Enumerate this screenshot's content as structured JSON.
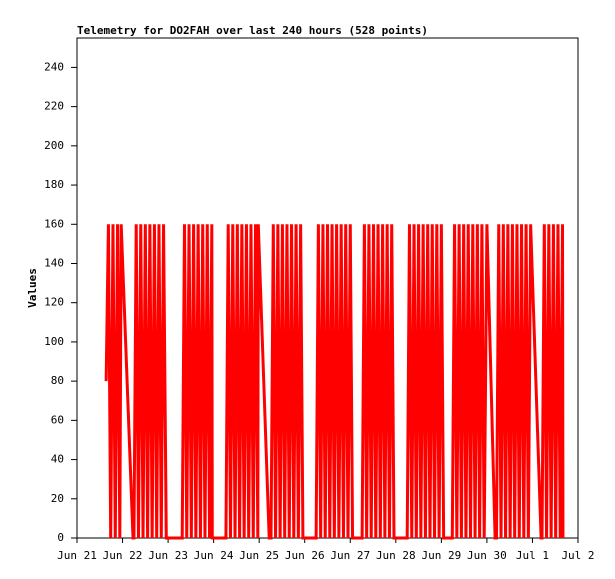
{
  "chart_data": {
    "type": "line",
    "title": "Telemetry for DO2FAH over last 240 hours (528 points)",
    "y_label": "Values",
    "color": "#ff0000",
    "xlim": [
      0,
      11
    ],
    "xticks": [
      {
        "value": 0,
        "label": "Jun 21"
      },
      {
        "value": 1,
        "label": "Jun 22"
      },
      {
        "value": 2,
        "label": "Jun 23"
      },
      {
        "value": 3,
        "label": "Jun 24"
      },
      {
        "value": 4,
        "label": "Jun 25"
      },
      {
        "value": 5,
        "label": "Jun 26"
      },
      {
        "value": 6,
        "label": "Jun 27"
      },
      {
        "value": 7,
        "label": "Jun 28"
      },
      {
        "value": 8,
        "label": "Jun 29"
      },
      {
        "value": 9,
        "label": "Jun 30"
      },
      {
        "value": 10,
        "label": "Jul 1"
      },
      {
        "value": 11,
        "label": "Jul 2"
      }
    ],
    "ylim": [
      0,
      255
    ],
    "yticks": [
      0,
      20,
      40,
      60,
      80,
      100,
      120,
      140,
      160,
      180,
      200,
      220,
      240
    ],
    "x": [
      0.64,
      0.69,
      0.74,
      0.79,
      0.84,
      0.89,
      0.94,
      0.97,
      1.23,
      1.25,
      1.3,
      1.35,
      1.4,
      1.45,
      1.5,
      1.55,
      1.6,
      1.65,
      1.7,
      1.75,
      1.8,
      1.85,
      1.9,
      1.96,
      2.31,
      2.36,
      2.41,
      2.46,
      2.51,
      2.56,
      2.61,
      2.66,
      2.71,
      2.76,
      2.81,
      2.86,
      2.91,
      2.96,
      2.97,
      3.27,
      3.32,
      3.37,
      3.42,
      3.47,
      3.52,
      3.57,
      3.62,
      3.67,
      3.72,
      3.77,
      3.82,
      3.87,
      3.92,
      3.97,
      3.98,
      4.22,
      4.26,
      4.31,
      4.36,
      4.41,
      4.46,
      4.51,
      4.56,
      4.61,
      4.66,
      4.71,
      4.76,
      4.81,
      4.86,
      4.91,
      4.96,
      5.25,
      5.3,
      5.35,
      5.4,
      5.45,
      5.5,
      5.55,
      5.6,
      5.65,
      5.7,
      5.75,
      5.8,
      5.85,
      5.9,
      5.95,
      6,
      6.05,
      6.26,
      6.31,
      6.36,
      6.41,
      6.46,
      6.51,
      6.56,
      6.61,
      6.66,
      6.71,
      6.76,
      6.81,
      6.86,
      6.91,
      6.96,
      7.25,
      7.3,
      7.35,
      7.4,
      7.45,
      7.5,
      7.55,
      7.6,
      7.65,
      7.7,
      7.75,
      7.8,
      7.85,
      7.9,
      7.95,
      8,
      8.05,
      8.24,
      8.29,
      8.34,
      8.39,
      8.44,
      8.49,
      8.54,
      8.59,
      8.64,
      8.69,
      8.74,
      8.79,
      8.84,
      8.89,
      8.94,
      9,
      9.18,
      9.21,
      9.26,
      9.31,
      9.36,
      9.41,
      9.46,
      9.51,
      9.56,
      9.61,
      9.66,
      9.71,
      9.76,
      9.81,
      9.86,
      9.91,
      9.96,
      10.19,
      10.21,
      10.26,
      10.31,
      10.36,
      10.41,
      10.46,
      10.51,
      10.56,
      10.61,
      10.66,
      10.67
    ],
    "values": [
      80,
      160,
      0,
      160,
      0,
      160,
      0,
      160,
      0,
      0,
      160,
      0,
      160,
      0,
      160,
      0,
      160,
      0,
      160,
      0,
      160,
      0,
      160,
      0,
      0,
      160,
      0,
      160,
      0,
      160,
      0,
      160,
      0,
      160,
      0,
      160,
      0,
      160,
      0,
      0,
      160,
      0,
      160,
      0,
      160,
      0,
      160,
      0,
      160,
      0,
      160,
      0,
      160,
      0,
      160,
      0,
      0,
      160,
      0,
      160,
      0,
      160,
      0,
      160,
      0,
      160,
      0,
      160,
      0,
      160,
      0,
      0,
      160,
      0,
      160,
      0,
      160,
      0,
      160,
      0,
      160,
      0,
      160,
      0,
      160,
      0,
      160,
      0,
      0,
      160,
      0,
      160,
      0,
      160,
      0,
      160,
      0,
      160,
      0,
      160,
      0,
      160,
      0,
      0,
      160,
      0,
      160,
      0,
      160,
      0,
      160,
      0,
      160,
      0,
      160,
      0,
      160,
      0,
      160,
      0,
      0,
      160,
      0,
      160,
      0,
      160,
      0,
      160,
      0,
      160,
      0,
      160,
      0,
      160,
      0,
      160,
      0,
      0,
      160,
      0,
      160,
      0,
      160,
      0,
      160,
      0,
      160,
      0,
      160,
      0,
      160,
      0,
      160,
      0,
      0,
      160,
      0,
      160,
      0,
      160,
      0,
      160,
      0,
      160,
      0
    ]
  }
}
